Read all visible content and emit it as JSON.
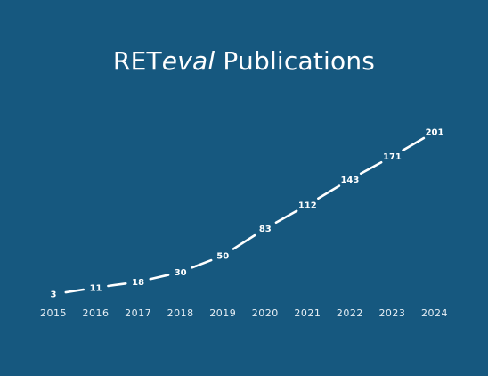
{
  "chart_data": {
    "type": "line",
    "title": {
      "prefix": "RET",
      "italic": "eval",
      "suffix": " Publications"
    },
    "xlabel": "",
    "ylabel": "",
    "x": [
      "2015",
      "2016",
      "2017",
      "2018",
      "2019",
      "2020",
      "2021",
      "2022",
      "2023",
      "2024"
    ],
    "series": [
      {
        "values": [
          3,
          11,
          18,
          30,
          50,
          83,
          112,
          143,
          171,
          201
        ]
      }
    ],
    "data_labels": true,
    "line_style": "dashed",
    "drop_lines": true,
    "grid": false,
    "legend": "none"
  },
  "colors": {
    "background": "#16587f",
    "line": "#ffffff",
    "text": "#ffffff"
  }
}
